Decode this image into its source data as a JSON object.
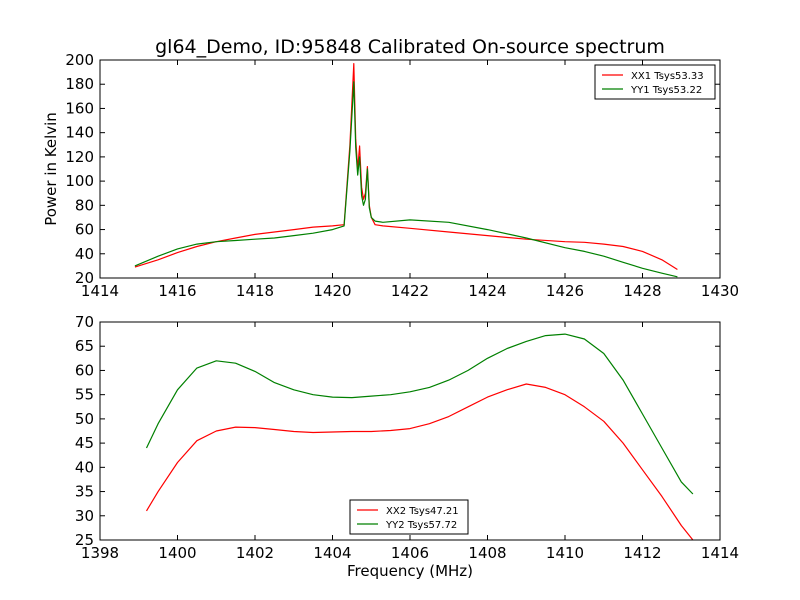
{
  "chart_data": [
    {
      "type": "line",
      "title": "gl64_Demo, ID:95848 Calibrated On-source spectrum",
      "xlabel": "",
      "ylabel": "Power in Kelvin",
      "xlim": [
        1414,
        1430
      ],
      "ylim": [
        20,
        200
      ],
      "xticks": [
        "1414",
        "1416",
        "1418",
        "1420",
        "1422",
        "1424",
        "1426",
        "1428",
        "1430"
      ],
      "yticks": [
        "20",
        "40",
        "60",
        "80",
        "100",
        "120",
        "140",
        "160",
        "180",
        "200"
      ],
      "legend": "top-right",
      "grid": false,
      "series": [
        {
          "name": "XX1 Tsys53.33",
          "color": "#ff0000",
          "x": [
            1414.9,
            1415.5,
            1416.0,
            1416.5,
            1417.0,
            1417.5,
            1418.0,
            1418.5,
            1419.0,
            1419.5,
            1420.0,
            1420.3,
            1420.45,
            1420.55,
            1420.6,
            1420.65,
            1420.7,
            1420.75,
            1420.8,
            1420.85,
            1420.9,
            1420.95,
            1421.0,
            1421.1,
            1421.3,
            1422.0,
            1423.0,
            1424.0,
            1425.0,
            1426.0,
            1426.5,
            1427.0,
            1427.5,
            1428.0,
            1428.5,
            1428.9
          ],
          "y": [
            29,
            35,
            41,
            46,
            50,
            53,
            56,
            58,
            60,
            62,
            63,
            64,
            130,
            197,
            135,
            110,
            129,
            95,
            85,
            90,
            112,
            80,
            70,
            64,
            63,
            61,
            58,
            55,
            52,
            50,
            49.5,
            48,
            46,
            42,
            35,
            27
          ]
        },
        {
          "name": "YY1 Tsys53.22",
          "color": "#008000",
          "x": [
            1414.9,
            1415.5,
            1416.0,
            1416.5,
            1417.0,
            1417.5,
            1418.0,
            1418.5,
            1419.0,
            1419.5,
            1420.0,
            1420.3,
            1420.45,
            1420.55,
            1420.6,
            1420.65,
            1420.7,
            1420.75,
            1420.8,
            1420.85,
            1420.9,
            1420.95,
            1421.0,
            1421.1,
            1421.3,
            1422.0,
            1423.0,
            1424.0,
            1425.0,
            1426.0,
            1426.5,
            1427.0,
            1427.5,
            1428.0,
            1428.5,
            1428.9
          ],
          "y": [
            30,
            38,
            44,
            48,
            50,
            51,
            52,
            53,
            55,
            57,
            60,
            63,
            125,
            182,
            128,
            105,
            120,
            88,
            80,
            85,
            110,
            78,
            70,
            67,
            66,
            68,
            66,
            60,
            53,
            45,
            42,
            38,
            33,
            28,
            24,
            21
          ]
        }
      ]
    },
    {
      "type": "line",
      "title": "",
      "xlabel": "Frequency (MHz)",
      "ylabel": "",
      "xlim": [
        1398,
        1414
      ],
      "ylim": [
        25,
        70
      ],
      "xticks": [
        "1398",
        "1400",
        "1402",
        "1404",
        "1406",
        "1408",
        "1410",
        "1412",
        "1414"
      ],
      "yticks": [
        "25",
        "30",
        "35",
        "40",
        "45",
        "50",
        "55",
        "60",
        "65",
        "70"
      ],
      "legend": "bottom-center",
      "grid": false,
      "series": [
        {
          "name": "XX2 Tsys47.21",
          "color": "#ff0000",
          "x": [
            1399.2,
            1399.5,
            1400.0,
            1400.5,
            1401.0,
            1401.5,
            1402.0,
            1402.5,
            1403.0,
            1403.5,
            1404.0,
            1404.5,
            1405.0,
            1405.5,
            1406.0,
            1406.5,
            1407.0,
            1407.5,
            1408.0,
            1408.5,
            1409.0,
            1409.5,
            1410.0,
            1410.5,
            1411.0,
            1411.5,
            1412.0,
            1412.5,
            1413.0,
            1413.3
          ],
          "y": [
            31,
            35,
            41,
            45.5,
            47.5,
            48.3,
            48.2,
            47.8,
            47.4,
            47.2,
            47.3,
            47.4,
            47.4,
            47.6,
            48,
            49,
            50.5,
            52.5,
            54.5,
            56,
            57.2,
            56.5,
            55,
            52.5,
            49.5,
            45,
            39.5,
            34,
            28,
            25
          ]
        },
        {
          "name": "YY2 Tsys57.72",
          "color": "#008000",
          "x": [
            1399.2,
            1399.5,
            1400.0,
            1400.5,
            1401.0,
            1401.5,
            1402.0,
            1402.5,
            1403.0,
            1403.5,
            1404.0,
            1404.5,
            1405.0,
            1405.5,
            1406.0,
            1406.5,
            1407.0,
            1407.5,
            1408.0,
            1408.5,
            1409.0,
            1409.5,
            1410.0,
            1410.5,
            1411.0,
            1411.5,
            1412.0,
            1412.5,
            1413.0,
            1413.3
          ],
          "y": [
            44,
            49,
            56,
            60.5,
            62,
            61.5,
            59.8,
            57.5,
            56,
            55,
            54.5,
            54.4,
            54.7,
            55,
            55.6,
            56.5,
            58,
            60,
            62.5,
            64.5,
            66,
            67.2,
            67.5,
            66.5,
            63.5,
            58,
            51,
            44,
            37,
            34.5
          ]
        }
      ]
    }
  ]
}
